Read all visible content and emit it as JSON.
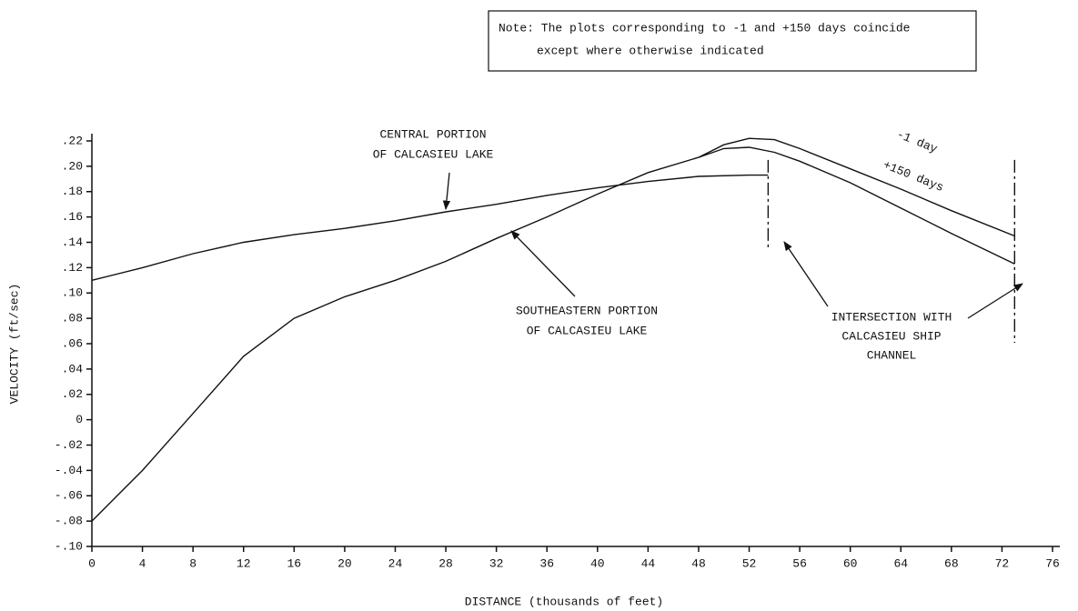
{
  "chart_data": {
    "type": "line",
    "note": [
      "Note: The plots corresponding to -1 and +150 days coincide",
      "except where otherwise indicated"
    ],
    "y_label": "VELOCITY (ft/sec)",
    "x_label": "DISTANCE (thousands of feet)",
    "xlim": [
      0,
      76
    ],
    "xticks": [
      0,
      4,
      8,
      12,
      16,
      20,
      24,
      28,
      32,
      36,
      40,
      44,
      48,
      52,
      56,
      60,
      64,
      68,
      72,
      76
    ],
    "ylim": [
      -0.1,
      0.22
    ],
    "yticks": [
      {
        "value": 0.22,
        "label": ".22"
      },
      {
        "value": 0.2,
        "label": ".20"
      },
      {
        "value": 0.18,
        "label": ".18"
      },
      {
        "value": 0.16,
        "label": ".16"
      },
      {
        "value": 0.14,
        "label": ".14"
      },
      {
        "value": 0.12,
        "label": ".12"
      },
      {
        "value": 0.1,
        "label": ".10"
      },
      {
        "value": 0.08,
        "label": ".08"
      },
      {
        "value": 0.06,
        "label": ".06"
      },
      {
        "value": 0.04,
        "label": ".04"
      },
      {
        "value": 0.02,
        "label": ".02"
      },
      0,
      {
        "value": -0.02,
        "label": "-.02"
      },
      {
        "value": -0.04,
        "label": "-.04"
      },
      {
        "value": -0.06,
        "label": "-.06"
      },
      {
        "value": -0.08,
        "label": "-.08"
      },
      {
        "value": -0.1,
        "label": "-.10"
      }
    ],
    "series": [
      {
        "label_lines": [
          "CENTRAL PORTION",
          "OF CALCASIEU LAKE"
        ],
        "color": "#111111",
        "x": [
          0,
          4,
          8,
          12,
          16,
          20,
          24,
          28,
          32,
          36,
          40,
          44,
          48,
          52,
          53.5
        ],
        "values": [
          0.11,
          0.12,
          0.131,
          0.14,
          0.146,
          0.151,
          0.157,
          0.164,
          0.17,
          0.177,
          0.183,
          0.188,
          0.192,
          0.193,
          0.193
        ]
      },
      {
        "label_lines": [
          "SOUTHEASTERN PORTION",
          "OF CALCASIEU LAKE"
        ],
        "color": "#111111",
        "x": [
          0,
          4,
          8,
          12,
          16,
          20,
          24,
          28,
          32,
          36,
          40,
          44,
          48
        ],
        "values": [
          -0.08,
          -0.04,
          0.005,
          0.05,
          0.08,
          0.097,
          0.11,
          0.125,
          0.143,
          0.16,
          0.178,
          0.195,
          0.207
        ]
      },
      {
        "name": "-1 day",
        "color": "#111111",
        "x": [
          48,
          50,
          52,
          54,
          56,
          60,
          64,
          68,
          73
        ],
        "values": [
          0.207,
          0.217,
          0.222,
          0.221,
          0.214,
          0.198,
          0.182,
          0.165,
          0.145
        ]
      },
      {
        "name": "+150 days",
        "color": "#111111",
        "x": [
          48,
          50,
          52,
          54,
          56,
          60,
          64,
          68,
          73
        ],
        "values": [
          0.207,
          0.214,
          0.215,
          0.211,
          0.204,
          0.187,
          0.167,
          0.147,
          0.123
        ]
      }
    ],
    "vlines": [
      53.5,
      73
    ],
    "annotation": [
      "INTERSECTION WITH",
      "CALCASIEU SHIP",
      "CHANNEL"
    ]
  }
}
